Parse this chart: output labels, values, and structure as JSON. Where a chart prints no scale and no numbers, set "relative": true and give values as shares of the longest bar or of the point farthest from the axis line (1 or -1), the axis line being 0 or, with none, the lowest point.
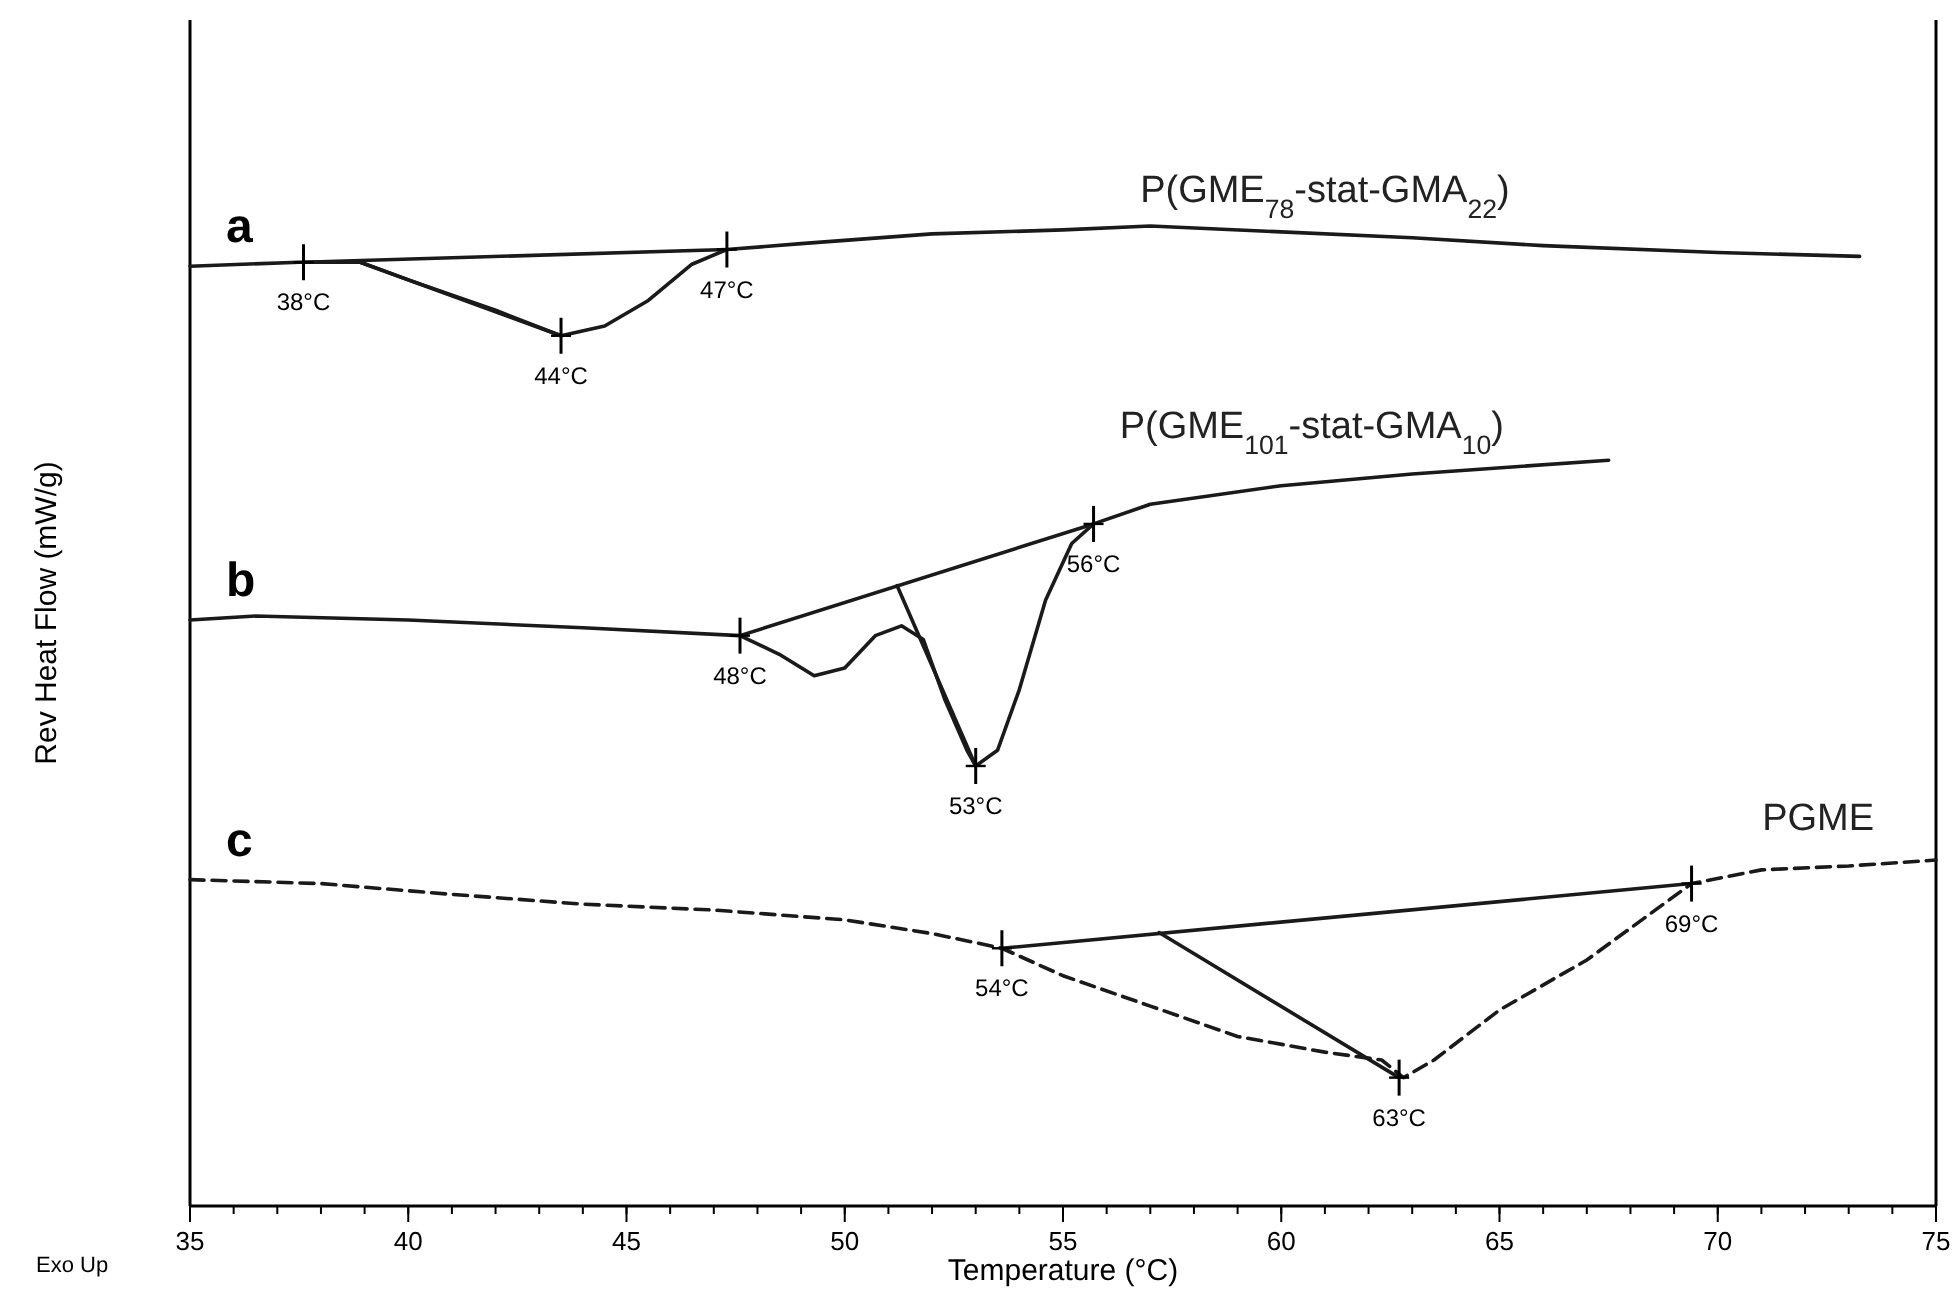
{
  "chart_data": {
    "type": "line",
    "relative": true,
    "xlabel": "Temperature (°C)",
    "ylabel": "Rev Heat Flow (mW/g)",
    "xlim": [
      35,
      75
    ],
    "xticks": [
      35,
      40,
      45,
      50,
      55,
      60,
      65,
      70,
      75
    ],
    "grid": false,
    "marker": "none",
    "series": [
      {
        "name": "P(GME$_{78}$-stat-GMA$_{22}$)",
        "color": "#1a1a1a",
        "line_style": "solid",
        "x": [
          35,
          37.5,
          38.9,
          40,
          42,
          43.5,
          44.5,
          45.5,
          46.5,
          47.3,
          49,
          52,
          55,
          57,
          60,
          63,
          66,
          70,
          73.25
        ],
        "values": [
          0.959,
          0.963,
          0.963,
          0.945,
          0.914,
          0.888,
          0.898,
          0.924,
          0.961,
          0.976,
          0.982,
          0.992,
          0.996,
          1,
          0.994,
          0.988,
          0.98,
          0.973,
          0.969
        ]
      },
      {
        "name": "P(GME$_{101}$-stat-GMA$_{10}$)",
        "color": "#1a1a1a",
        "line_style": "solid",
        "x": [
          35,
          36.5,
          40,
          44,
          47.6,
          48.5,
          49.3,
          50,
          50.7,
          51.3,
          51.8,
          52.3,
          52.8,
          53,
          53.5,
          54,
          54.6,
          55.2,
          55.7,
          57,
          60,
          63,
          67.5
        ],
        "values": [
          0.598,
          0.602,
          0.598,
          0.59,
          0.582,
          0.563,
          0.541,
          0.549,
          0.582,
          0.592,
          0.578,
          0.516,
          0.465,
          0.449,
          0.465,
          0.527,
          0.618,
          0.676,
          0.696,
          0.716,
          0.735,
          0.747,
          0.761
        ]
      },
      {
        "name": "PGME",
        "color": "#1a1a1a",
        "line_style": "dashed",
        "x": [
          35,
          38,
          41,
          44,
          47,
          50,
          52,
          53.6,
          55,
          57,
          59,
          61,
          62.3,
          62.8,
          63.5,
          65,
          67,
          69.4,
          71,
          73,
          75
        ],
        "values": [
          0.333,
          0.329,
          0.318,
          0.308,
          0.302,
          0.292,
          0.278,
          0.263,
          0.235,
          0.204,
          0.173,
          0.157,
          0.149,
          0.131,
          0.149,
          0.2,
          0.251,
          0.329,
          0.343,
          0.347,
          0.353
        ]
      },
      {
        "color": "#1a1a1a",
        "line_style": "solid",
        "x": [
          37.6,
          47.3
        ],
        "values": [
          0.963,
          0.976
        ]
      },
      {
        "color": "#1a1a1a",
        "line_style": "solid",
        "x": [
          38.9,
          43.5
        ],
        "values": [
          0.963,
          0.888
        ]
      },
      {
        "color": "#1a1a1a",
        "line_style": "solid",
        "x": [
          47.6,
          55.7
        ],
        "values": [
          0.582,
          0.696
        ]
      },
      {
        "color": "#1a1a1a",
        "line_style": "solid",
        "x": [
          51.2,
          53
        ],
        "values": [
          0.633,
          0.449
        ]
      },
      {
        "color": "#1a1a1a",
        "line_style": "solid",
        "x": [
          53.6,
          69.4
        ],
        "values": [
          0.263,
          0.329
        ]
      },
      {
        "color": "#1a1a1a",
        "line_style": "solid",
        "x": [
          57.2,
          62.7
        ],
        "values": [
          0.279,
          0.131
        ]
      }
    ],
    "annotations": [
      {
        "text": "38°C",
        "x": 37.6,
        "y": 0.963
      },
      {
        "text": "44°C",
        "x": 43.5,
        "y": 0.888
      },
      {
        "text": "47°C",
        "x": 47.3,
        "y": 0.976
      },
      {
        "text": "48°C",
        "x": 47.6,
        "y": 0.582
      },
      {
        "text": "53°C",
        "x": 53,
        "y": 0.449
      },
      {
        "text": "56°C",
        "x": 55.7,
        "y": 0.696
      },
      {
        "text": "54°C",
        "x": 53.6,
        "y": 0.263
      },
      {
        "text": "63°C",
        "x": 62.7,
        "y": 0.131
      },
      {
        "text": "69°C",
        "x": 69.4,
        "y": 0.329
      },
      "a",
      "b",
      "c",
      "Exo Up"
    ]
  }
}
